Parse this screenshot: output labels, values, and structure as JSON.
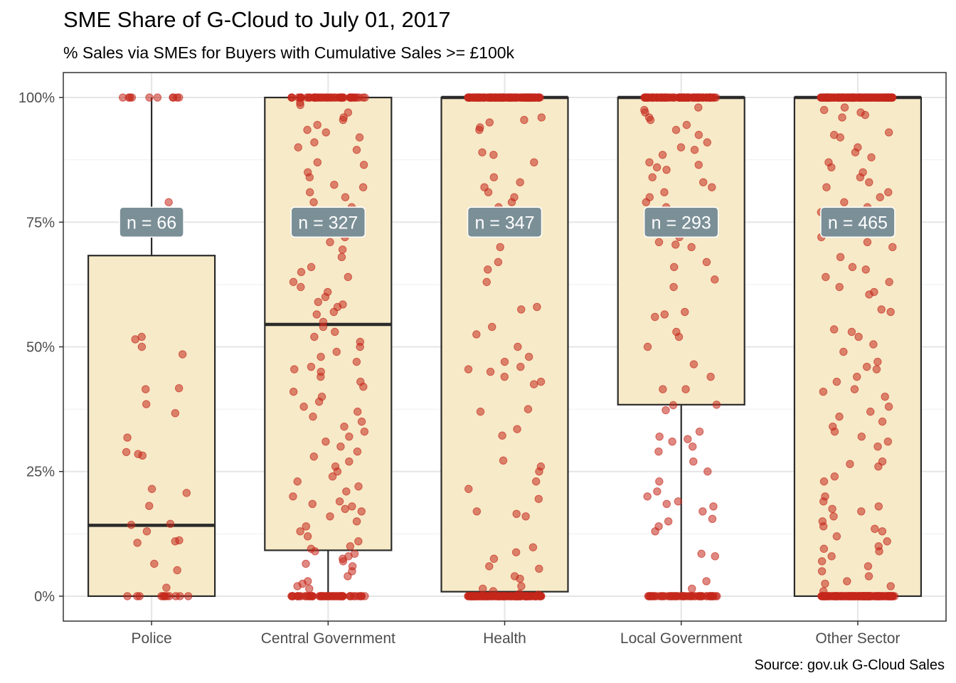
{
  "chart_data": {
    "type": "box",
    "title": "SME Share of G-Cloud to July 01, 2017",
    "subtitle": "% Sales via SMEs for Buyers with Cumulative Sales >= £100k",
    "caption": "Source: gov.uk G-Cloud Sales",
    "xlabel": "",
    "ylabel": "",
    "y_domain": [
      -0.05,
      1.05
    ],
    "y_ticks": [
      0,
      0.25,
      0.5,
      0.75,
      1.0
    ],
    "y_tick_labels": [
      "0%",
      "25%",
      "50%",
      "75%",
      "100%"
    ],
    "grid": true,
    "legend": "none",
    "label_y": 0.75,
    "colors": {
      "box_fill": "#f7eac8",
      "box_stroke": "#2b2b2b",
      "point": "#c5281c",
      "label_bg": "#7b8f97",
      "label_text": "#ffffff",
      "grid": "#e5e5e5",
      "panel_border": "#333333"
    },
    "categories": [
      {
        "name": "Police",
        "n_label": "n = 66",
        "box": {
          "q1": 0.0,
          "median": 0.142,
          "q3": 0.683,
          "whisker_low": 0.0,
          "whisker_high": 1.0
        },
        "points": {
          "zero": 12,
          "one": 10,
          "mid": [
            0.79,
            0.52,
            0.515,
            0.5,
            0.485,
            0.417,
            0.415,
            0.385,
            0.367,
            0.318,
            0.289,
            0.285,
            0.282,
            0.215,
            0.207,
            0.181,
            0.145,
            0.143,
            0.13,
            0.112,
            0.11,
            0.107,
            0.065,
            0.052,
            0.017
          ]
        }
      },
      {
        "name": "Central Government",
        "n_label": "n = 327",
        "box": {
          "q1": 0.092,
          "median": 0.545,
          "q3": 1.0,
          "whisker_low": 0.0,
          "whisker_high": 1.0
        },
        "points": {
          "zero": 60,
          "one": 55,
          "mid": [
            0.99,
            0.985,
            0.97,
            0.96,
            0.955,
            0.945,
            0.935,
            0.93,
            0.92,
            0.91,
            0.9,
            0.895,
            0.87,
            0.865,
            0.85,
            0.84,
            0.825,
            0.82,
            0.81,
            0.8,
            0.79,
            0.78,
            0.75,
            0.74,
            0.72,
            0.71,
            0.695,
            0.68,
            0.66,
            0.65,
            0.64,
            0.63,
            0.62,
            0.61,
            0.6,
            0.59,
            0.585,
            0.58,
            0.57,
            0.565,
            0.55,
            0.54,
            0.53,
            0.52,
            0.51,
            0.5,
            0.49,
            0.48,
            0.47,
            0.46,
            0.455,
            0.45,
            0.44,
            0.43,
            0.42,
            0.41,
            0.4,
            0.39,
            0.38,
            0.37,
            0.36,
            0.35,
            0.34,
            0.33,
            0.32,
            0.31,
            0.3,
            0.29,
            0.28,
            0.27,
            0.26,
            0.25,
            0.24,
            0.23,
            0.22,
            0.21,
            0.2,
            0.19,
            0.185,
            0.18,
            0.175,
            0.17,
            0.16,
            0.15,
            0.14,
            0.13,
            0.12,
            0.11,
            0.1,
            0.095,
            0.09,
            0.085,
            0.08,
            0.075,
            0.07,
            0.065,
            0.06,
            0.05,
            0.04,
            0.03,
            0.025,
            0.02,
            0.015
          ]
        }
      },
      {
        "name": "Health",
        "n_label": "n = 347",
        "box": {
          "q1": 0.009,
          "median": 1.0,
          "q3": 1.0,
          "whisker_low": 0.0,
          "whisker_high": 1.0
        },
        "points": {
          "zero": 140,
          "one": 150,
          "mid": [
            0.96,
            0.955,
            0.95,
            0.94,
            0.935,
            0.89,
            0.885,
            0.87,
            0.84,
            0.83,
            0.82,
            0.81,
            0.8,
            0.79,
            0.78,
            0.7,
            0.67,
            0.655,
            0.63,
            0.58,
            0.575,
            0.54,
            0.525,
            0.5,
            0.48,
            0.47,
            0.46,
            0.455,
            0.45,
            0.44,
            0.43,
            0.425,
            0.375,
            0.37,
            0.335,
            0.322,
            0.272,
            0.26,
            0.25,
            0.23,
            0.215,
            0.195,
            0.17,
            0.165,
            0.16,
            0.098,
            0.088,
            0.075,
            0.06,
            0.055,
            0.04,
            0.035,
            0.02,
            0.015,
            0.01,
            0.005,
            0.003
          ]
        }
      },
      {
        "name": "Local Government",
        "n_label": "n = 293",
        "box": {
          "q1": 0.384,
          "median": 1.0,
          "q3": 1.0,
          "whisker_low": 0.0,
          "whisker_high": 1.0
        },
        "points": {
          "zero": 60,
          "one": 110,
          "mid": [
            0.98,
            0.975,
            0.97,
            0.96,
            0.955,
            0.945,
            0.935,
            0.925,
            0.91,
            0.9,
            0.895,
            0.885,
            0.87,
            0.865,
            0.86,
            0.855,
            0.84,
            0.83,
            0.82,
            0.81,
            0.8,
            0.79,
            0.78,
            0.77,
            0.72,
            0.71,
            0.705,
            0.7,
            0.67,
            0.66,
            0.635,
            0.62,
            0.57,
            0.565,
            0.56,
            0.53,
            0.52,
            0.5,
            0.465,
            0.44,
            0.415,
            0.415,
            0.384,
            0.383,
            0.373,
            0.33,
            0.32,
            0.315,
            0.31,
            0.3,
            0.29,
            0.27,
            0.25,
            0.23,
            0.21,
            0.2,
            0.19,
            0.185,
            0.18,
            0.17,
            0.155,
            0.15,
            0.14,
            0.13,
            0.085,
            0.08,
            0.03,
            0.015
          ]
        }
      },
      {
        "name": "Other Sector",
        "n_label": "n = 465",
        "box": {
          "q1": 0.0,
          "median": 1.0,
          "q3": 1.0,
          "whisker_low": 0.0,
          "whisker_high": 1.0
        },
        "points": {
          "zero": 160,
          "one": 160,
          "mid": [
            0.98,
            0.975,
            0.97,
            0.965,
            0.96,
            0.93,
            0.925,
            0.92,
            0.9,
            0.89,
            0.88,
            0.87,
            0.86,
            0.85,
            0.84,
            0.83,
            0.82,
            0.81,
            0.8,
            0.79,
            0.78,
            0.77,
            0.76,
            0.74,
            0.73,
            0.72,
            0.71,
            0.7,
            0.68,
            0.66,
            0.655,
            0.64,
            0.63,
            0.62,
            0.61,
            0.605,
            0.575,
            0.57,
            0.535,
            0.53,
            0.52,
            0.505,
            0.49,
            0.47,
            0.46,
            0.455,
            0.44,
            0.43,
            0.415,
            0.41,
            0.4,
            0.38,
            0.37,
            0.36,
            0.35,
            0.34,
            0.33,
            0.32,
            0.31,
            0.3,
            0.27,
            0.265,
            0.26,
            0.24,
            0.23,
            0.2,
            0.19,
            0.18,
            0.175,
            0.17,
            0.16,
            0.15,
            0.14,
            0.135,
            0.13,
            0.12,
            0.11,
            0.1,
            0.095,
            0.09,
            0.08,
            0.07,
            0.06,
            0.05,
            0.04,
            0.03,
            0.025,
            0.02,
            0.01
          ]
        }
      }
    ]
  }
}
